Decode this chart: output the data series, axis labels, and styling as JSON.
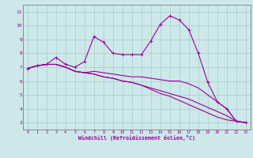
{
  "xlabel": "Windchill (Refroidissement éolien,°C)",
  "ylabel": "",
  "bg_color": "#cce8e8",
  "line_color": "#990099",
  "grid_color": "#aacccc",
  "xlim": [
    -0.5,
    23.5
  ],
  "ylim": [
    2.5,
    11.5
  ],
  "xticks": [
    0,
    1,
    2,
    3,
    4,
    5,
    6,
    7,
    8,
    9,
    10,
    11,
    12,
    13,
    14,
    15,
    16,
    17,
    18,
    19,
    20,
    21,
    22,
    23
  ],
  "yticks": [
    3,
    4,
    5,
    6,
    7,
    8,
    9,
    10,
    11
  ],
  "series": [
    [
      6.9,
      7.1,
      7.2,
      7.7,
      7.2,
      7.0,
      7.4,
      9.2,
      8.8,
      8.0,
      7.9,
      7.9,
      7.9,
      8.9,
      10.1,
      10.7,
      10.4,
      9.7,
      8.0,
      5.9,
      4.5,
      4.0,
      3.1,
      3.0
    ],
    [
      6.9,
      7.1,
      7.2,
      7.2,
      7.0,
      6.7,
      6.6,
      6.7,
      6.6,
      6.5,
      6.4,
      6.3,
      6.3,
      6.2,
      6.1,
      6.0,
      6.0,
      5.8,
      5.5,
      5.0,
      4.5,
      4.0,
      3.1,
      3.0
    ],
    [
      6.9,
      7.1,
      7.2,
      7.2,
      7.0,
      6.7,
      6.6,
      6.5,
      6.3,
      6.2,
      6.0,
      5.9,
      5.7,
      5.5,
      5.3,
      5.1,
      4.9,
      4.7,
      4.4,
      4.1,
      3.8,
      3.5,
      3.1,
      3.0
    ],
    [
      6.9,
      7.1,
      7.2,
      7.2,
      7.0,
      6.7,
      6.6,
      6.5,
      6.3,
      6.2,
      6.0,
      5.9,
      5.7,
      5.4,
      5.1,
      4.9,
      4.6,
      4.3,
      4.0,
      3.7,
      3.4,
      3.2,
      3.1,
      3.0
    ]
  ]
}
